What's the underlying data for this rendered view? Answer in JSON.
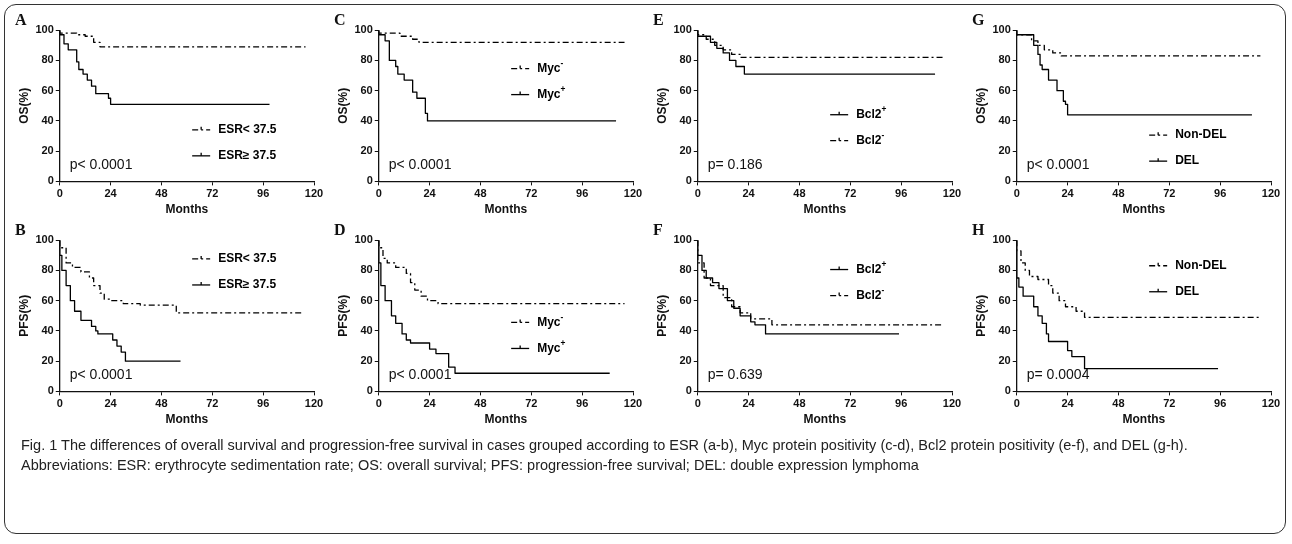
{
  "chart_data": [
    {
      "type": "step",
      "title": "A",
      "xlabel": "Months",
      "ylabel": "OS(%)",
      "xlim": [
        0,
        120
      ],
      "xticks": [
        0,
        24,
        48,
        72,
        96,
        120
      ],
      "ylim": [
        0,
        100
      ],
      "yticks": [
        0,
        20,
        40,
        60,
        80,
        100
      ],
      "legend": "right",
      "annotations": [
        "p< 0.0001"
      ],
      "series": [
        {
          "name": "ESR< 37.5",
          "color": "#000000",
          "line_style": "dashed",
          "x": [
            0,
            8,
            12,
            16,
            19,
            21,
            116
          ],
          "values": [
            100,
            98,
            97,
            96,
            92,
            89,
            89
          ]
        },
        {
          "name": "ESR≥ 37.5",
          "color": "#000000",
          "line_style": "solid",
          "x": [
            0,
            2,
            4,
            8,
            9,
            11,
            13,
            15,
            17,
            23,
            24,
            25,
            99
          ],
          "values": [
            100,
            97,
            91,
            87,
            79,
            74,
            71,
            67,
            63,
            58,
            55,
            51,
            51
          ]
        }
      ]
    },
    {
      "type": "step",
      "title": "C",
      "xlabel": "Months",
      "ylabel": "OS(%)",
      "xlim": [
        0,
        120
      ],
      "xticks": [
        0,
        24,
        48,
        72,
        96,
        120
      ],
      "ylim": [
        0,
        100
      ],
      "yticks": [
        0,
        20,
        40,
        60,
        80,
        100
      ],
      "legend": "right",
      "annotations": [
        "p< 0.0001"
      ],
      "series": [
        {
          "name": "Myc$^{-}$",
          "color": "#000000",
          "line_style": "dashed",
          "x": [
            0,
            10,
            16,
            19,
            21,
            116
          ],
          "values": [
            100,
            98,
            96,
            94,
            92,
            92
          ]
        },
        {
          "name": "Myc$^{+}$",
          "color": "#000000",
          "line_style": "solid",
          "x": [
            0,
            3,
            5,
            8,
            9,
            12,
            16,
            18,
            22,
            23,
            25,
            112
          ],
          "values": [
            100,
            97,
            93,
            80,
            76,
            71,
            67,
            59,
            55,
            45,
            40,
            40
          ]
        }
      ]
    },
    {
      "type": "step",
      "title": "E",
      "xlabel": "Months",
      "ylabel": "OS(%)",
      "xlim": [
        0,
        120
      ],
      "xticks": [
        0,
        24,
        48,
        72,
        96,
        120
      ],
      "ylim": [
        0,
        100
      ],
      "yticks": [
        0,
        20,
        40,
        60,
        80,
        100
      ],
      "legend": "right",
      "annotations": [
        "p= 0.186"
      ],
      "series": [
        {
          "name": "Bcl2$^{+}$",
          "color": "#000000",
          "line_style": "solid",
          "x": [
            0,
            6,
            9,
            12,
            15,
            18,
            22,
            25,
            112
          ],
          "values": [
            100,
            96,
            92,
            88,
            85,
            80,
            76,
            71,
            71
          ]
        },
        {
          "name": "Bcl2$^{-}$",
          "color": "#000000",
          "line_style": "dashed",
          "x": [
            0,
            4,
            8,
            12,
            16,
            20,
            24,
            116
          ],
          "values": [
            100,
            97,
            94,
            90,
            87,
            84,
            82,
            82
          ]
        }
      ]
    },
    {
      "type": "step",
      "title": "G",
      "xlabel": "Months",
      "ylabel": "OS(%)",
      "xlim": [
        0,
        120
      ],
      "xticks": [
        0,
        24,
        48,
        72,
        96,
        120
      ],
      "ylim": [
        0,
        100
      ],
      "yticks": [
        0,
        20,
        40,
        60,
        80,
        100
      ],
      "legend": "right",
      "annotations": [
        "p< 0.0001"
      ],
      "series": [
        {
          "name": "Non-DEL",
          "color": "#000000",
          "line_style": "dashed",
          "x": [
            0,
            7,
            10,
            13,
            17,
            21,
            24,
            115
          ],
          "values": [
            100,
            97,
            93,
            90,
            87,
            85,
            83,
            83
          ]
        },
        {
          "name": "DEL",
          "color": "#000000",
          "line_style": "solid",
          "x": [
            0,
            8,
            10,
            11,
            12,
            15,
            19,
            22,
            23,
            24,
            26,
            111
          ],
          "values": [
            100,
            97,
            90,
            84,
            77,
            74,
            67,
            60,
            53,
            51,
            44,
            44
          ]
        }
      ]
    },
    {
      "type": "step",
      "title": "B",
      "xlabel": "Months",
      "ylabel": "PFS(%)",
      "xlim": [
        0,
        120
      ],
      "xticks": [
        0,
        24,
        48,
        72,
        96,
        120
      ],
      "ylim": [
        0,
        100
      ],
      "yticks": [
        0,
        20,
        40,
        60,
        80,
        100
      ],
      "legend": "right",
      "annotations": [
        "p< 0.0001"
      ],
      "series": [
        {
          "name": "ESR< 37.5",
          "color": "#000000",
          "line_style": "dashed",
          "x": [
            0,
            3,
            6,
            10,
            14,
            16,
            19,
            21,
            24,
            30,
            38,
            55,
            74,
            115
          ],
          "values": [
            100,
            95,
            85,
            82,
            79,
            75,
            70,
            65,
            61,
            60,
            58,
            57,
            52,
            52
          ]
        },
        {
          "name": "ESR≥ 37.5",
          "color": "#000000",
          "line_style": "solid",
          "x": [
            0,
            1,
            3,
            5,
            7,
            10,
            15,
            17,
            18,
            25,
            27,
            29,
            31,
            35,
            57
          ],
          "values": [
            100,
            90,
            80,
            70,
            60,
            53,
            47,
            43,
            40,
            38,
            34,
            30,
            26,
            20,
            20
          ]
        }
      ]
    },
    {
      "type": "step",
      "title": "D",
      "xlabel": "Months",
      "ylabel": "PFS(%)",
      "xlim": [
        0,
        120
      ],
      "xticks": [
        0,
        24,
        48,
        72,
        96,
        120
      ],
      "ylim": [
        0,
        100
      ],
      "yticks": [
        0,
        20,
        40,
        60,
        80,
        100
      ],
      "legend": "right",
      "annotations": [
        "p< 0.0001"
      ],
      "series": [
        {
          "name": "Myc$^{-}$",
          "color": "#000000",
          "line_style": "dashed",
          "x": [
            0,
            2,
            4,
            8,
            13,
            15,
            17,
            20,
            23,
            28,
            30,
            116
          ],
          "values": [
            100,
            95,
            88,
            85,
            82,
            78,
            72,
            67,
            63,
            60,
            58,
            58
          ]
        },
        {
          "name": "Myc$^{+}$",
          "color": "#000000",
          "line_style": "solid",
          "x": [
            0,
            1,
            3,
            6,
            8,
            11,
            13,
            15,
            24,
            27,
            33,
            36,
            74,
            109
          ],
          "values": [
            100,
            85,
            70,
            60,
            50,
            45,
            38,
            34,
            32,
            28,
            25,
            16,
            12,
            12
          ]
        }
      ]
    },
    {
      "type": "step",
      "title": "F",
      "xlabel": "Months",
      "ylabel": "PFS(%)",
      "xlim": [
        0,
        120
      ],
      "xticks": [
        0,
        24,
        48,
        72,
        96,
        120
      ],
      "ylim": [
        0,
        100
      ],
      "yticks": [
        0,
        20,
        40,
        60,
        80,
        100
      ],
      "legend": "right",
      "annotations": [
        "p= 0.639"
      ],
      "series": [
        {
          "name": "Bcl2$^{+}$",
          "color": "#000000",
          "line_style": "solid",
          "x": [
            0,
            2,
            4,
            7,
            10,
            14,
            17,
            20,
            25,
            27,
            32,
            74,
            95
          ],
          "values": [
            100,
            90,
            80,
            75,
            72,
            68,
            60,
            55,
            50,
            46,
            44,
            38,
            38
          ]
        },
        {
          "name": "Bcl2$^{-}$",
          "color": "#000000",
          "line_style": "dashed",
          "x": [
            0,
            3,
            6,
            12,
            16,
            20,
            25,
            35,
            37,
            116
          ],
          "values": [
            100,
            85,
            75,
            70,
            62,
            56,
            52,
            48,
            44,
            44
          ]
        }
      ]
    },
    {
      "type": "step",
      "title": "H",
      "xlabel": "Months",
      "ylabel": "PFS(%)",
      "xlim": [
        0,
        120
      ],
      "xticks": [
        0,
        24,
        48,
        72,
        96,
        120
      ],
      "ylim": [
        0,
        100
      ],
      "yticks": [
        0,
        20,
        40,
        60,
        80,
        100
      ],
      "legend": "right",
      "annotations": [
        "p= 0.0004"
      ],
      "series": [
        {
          "name": "Non-DEL",
          "color": "#000000",
          "line_style": "dashed",
          "x": [
            0,
            2,
            4,
            6,
            10,
            15,
            17,
            20,
            23,
            28,
            32,
            35,
            115
          ],
          "values": [
            100,
            93,
            85,
            80,
            76,
            74,
            70,
            65,
            60,
            56,
            53,
            49,
            49
          ]
        },
        {
          "name": "DEL",
          "color": "#000000",
          "line_style": "solid",
          "x": [
            0,
            1,
            3,
            8,
            10,
            12,
            14,
            15,
            24,
            26,
            32,
            74,
            95
          ],
          "values": [
            100,
            75,
            69,
            63,
            56,
            50,
            45,
            38,
            33,
            27,
            23,
            15,
            15
          ]
        }
      ]
    },
    {
      "type": "other",
      "annotations": [
        "Fig. 1 The differences of overall survival and progression-free survival in cases grouped according to ESR (a-b), Myc protein positivity (c-d), Bcl2 protein positivity (e-f), and DEL (g-h). Abbreviations: ESR: erythrocyte sedimentation rate; OS: overall survival; PFS: progression-free survival; DEL: double expression lymphoma"
      ]
    }
  ]
}
